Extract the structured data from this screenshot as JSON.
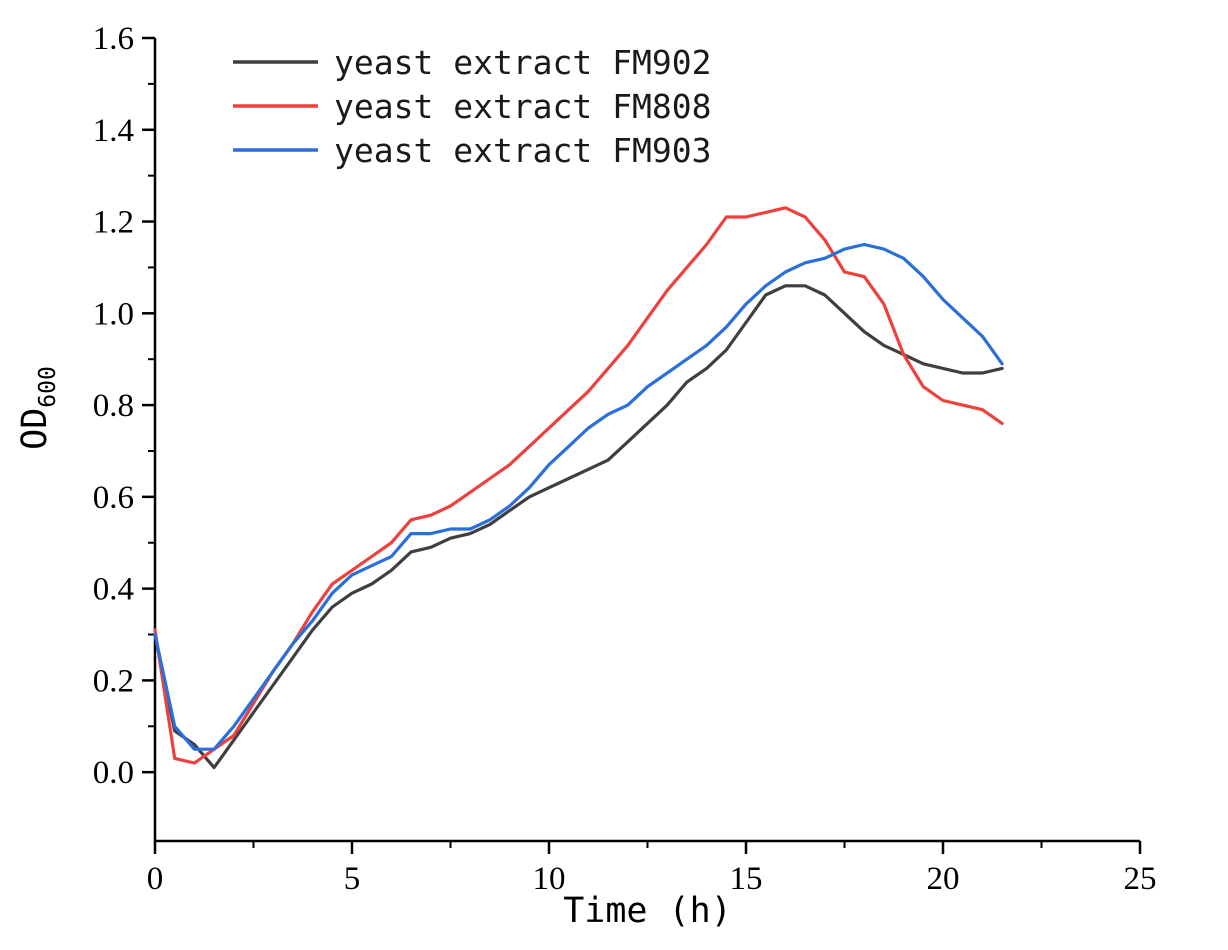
{
  "chart_data": {
    "type": "line",
    "title": "",
    "xlabel": "Time (h)",
    "ylabel": "OD",
    "ylabel_subscript": "600",
    "xlim": [
      0,
      25
    ],
    "ylim": [
      -0.15,
      1.6
    ],
    "xticks": [
      0,
      5,
      10,
      15,
      20,
      25
    ],
    "yticks": [
      0.0,
      0.2,
      0.4,
      0.6,
      0.8,
      1.0,
      1.2,
      1.4,
      1.6
    ],
    "grid": false,
    "legend_position": "top-left-inside",
    "axis_color": "#000000",
    "x": [
      0,
      0.5,
      1,
      1.5,
      2,
      2.5,
      3,
      3.5,
      4,
      4.5,
      5,
      5.5,
      6,
      6.5,
      7,
      7.5,
      8,
      8.5,
      9,
      9.5,
      10,
      10.5,
      11,
      11.5,
      12,
      12.5,
      13,
      13.5,
      14,
      14.5,
      15,
      15.5,
      16,
      16.5,
      17,
      17.5,
      18,
      18.5,
      19,
      19.5,
      20,
      20.5,
      21,
      21.5
    ],
    "series": [
      {
        "name": "yeast extract FM902",
        "color": "#3f3f3f",
        "values": [
          0.3,
          0.09,
          0.06,
          0.01,
          0.07,
          0.13,
          0.19,
          0.25,
          0.31,
          0.36,
          0.39,
          0.41,
          0.44,
          0.48,
          0.49,
          0.51,
          0.52,
          0.54,
          0.57,
          0.6,
          0.62,
          0.64,
          0.66,
          0.68,
          0.72,
          0.76,
          0.8,
          0.85,
          0.88,
          0.92,
          0.98,
          1.04,
          1.06,
          1.06,
          1.04,
          1.0,
          0.96,
          0.93,
          0.91,
          0.89,
          0.88,
          0.87,
          0.87,
          0.88
        ]
      },
      {
        "name": "yeast extract FM808",
        "color": "#ee403d",
        "values": [
          0.31,
          0.03,
          0.02,
          0.05,
          0.08,
          0.15,
          0.22,
          0.28,
          0.35,
          0.41,
          0.44,
          0.47,
          0.5,
          0.55,
          0.56,
          0.58,
          0.61,
          0.64,
          0.67,
          0.71,
          0.75,
          0.79,
          0.83,
          0.88,
          0.93,
          0.99,
          1.05,
          1.1,
          1.15,
          1.21,
          1.21,
          1.22,
          1.23,
          1.21,
          1.16,
          1.09,
          1.08,
          1.02,
          0.91,
          0.84,
          0.81,
          0.8,
          0.79,
          0.76
        ]
      },
      {
        "name": "yeast extract FM903",
        "color": "#2a6fdb",
        "values": [
          0.3,
          0.1,
          0.05,
          0.05,
          0.1,
          0.16,
          0.22,
          0.28,
          0.33,
          0.39,
          0.43,
          0.45,
          0.47,
          0.52,
          0.52,
          0.53,
          0.53,
          0.55,
          0.58,
          0.62,
          0.67,
          0.71,
          0.75,
          0.78,
          0.8,
          0.84,
          0.87,
          0.9,
          0.93,
          0.97,
          1.02,
          1.06,
          1.09,
          1.11,
          1.12,
          1.14,
          1.15,
          1.14,
          1.12,
          1.08,
          1.03,
          0.99,
          0.95,
          0.89
        ]
      }
    ]
  }
}
